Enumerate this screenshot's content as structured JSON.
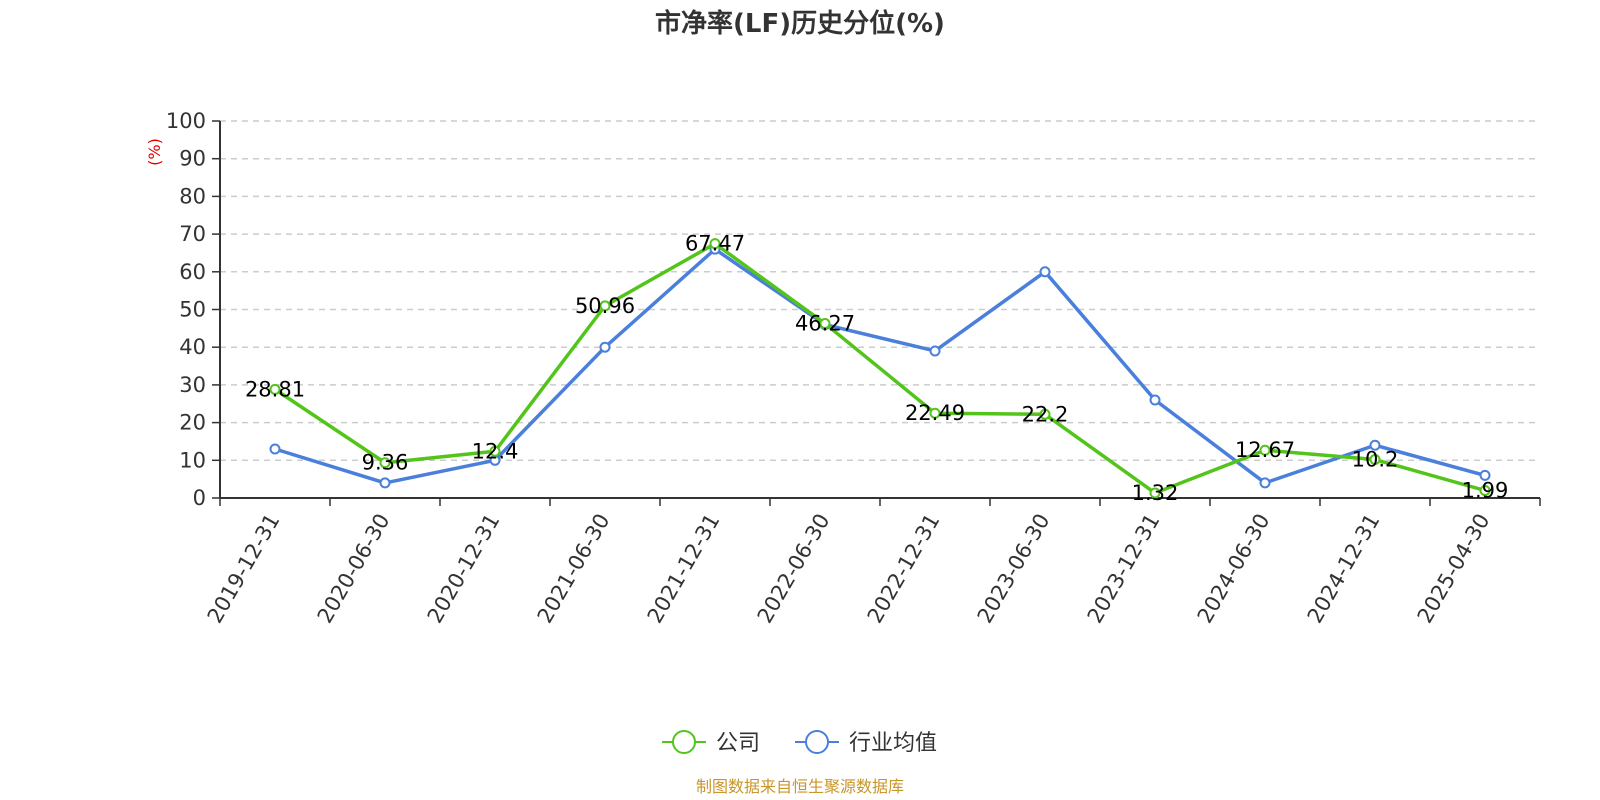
{
  "chart_data": {
    "type": "line",
    "title": "市净率(LF)历史分位(%)",
    "ylabel": "(%)",
    "ylim": [
      0,
      100
    ],
    "yticks": [
      0,
      10,
      20,
      30,
      40,
      50,
      60,
      70,
      80,
      90,
      100
    ],
    "grid": true,
    "legend_position": "bottom-center",
    "categories": [
      "2019-12-31",
      "2020-06-30",
      "2020-12-31",
      "2021-06-30",
      "2021-12-31",
      "2022-06-30",
      "2022-12-31",
      "2023-06-30",
      "2023-12-31",
      "2024-06-30",
      "2024-12-31",
      "2025-04-30"
    ],
    "series": [
      {
        "name": "公司",
        "color": "#52c41a",
        "values": [
          28.81,
          9.36,
          12.4,
          50.96,
          67.47,
          46.27,
          22.49,
          22.2,
          1.32,
          12.67,
          10.2,
          1.99
        ],
        "labels": [
          "28.81",
          "9.36",
          "12.4",
          "50.96",
          "67.47",
          "46.27",
          "22.49",
          "22.2",
          "1.32",
          "12.67",
          "10.2",
          "1.99"
        ]
      },
      {
        "name": "行业均值",
        "color": "#4a7fdc",
        "values": [
          13,
          4,
          10,
          40,
          66,
          46,
          39,
          60,
          26,
          4,
          14,
          6
        ]
      }
    ],
    "source": "制图数据来自恒生聚源数据库"
  }
}
